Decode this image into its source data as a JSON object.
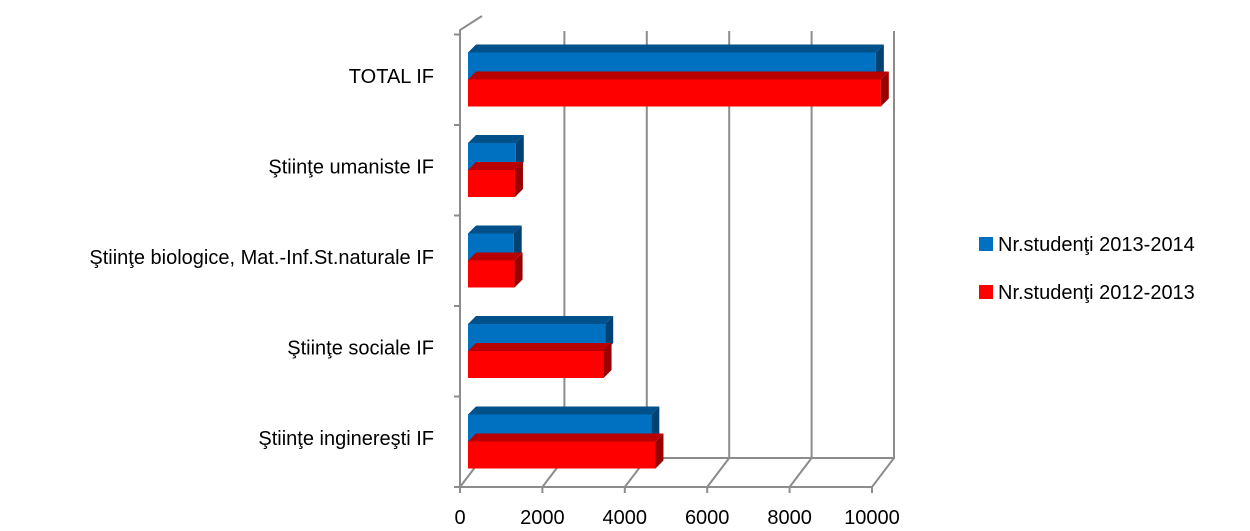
{
  "colors": {
    "series_2013_2014": "#0070c0",
    "series_2012_2013": "#ff0000",
    "grid": "#8c8c8c"
  },
  "chart_data": {
    "type": "bar",
    "orientation": "horizontal",
    "style": "3d-clustered",
    "categories": [
      "Ştiinţe inginereşti IF",
      "Ştiinţe sociale IF",
      "Ştiinţe biologice, Mat.-Inf.St.naturale IF",
      "Ştiinţe umaniste IF",
      "TOTAL IF"
    ],
    "series": [
      {
        "name": "Nr.studenţi 2013-2014",
        "color": "#0070c0",
        "values": [
          4450,
          3330,
          1110,
          1160,
          9900
        ]
      },
      {
        "name": "Nr.studenţi 2012-2013",
        "color": "#ff0000",
        "values": [
          4550,
          3290,
          1130,
          1140,
          10020
        ]
      }
    ],
    "xlim": [
      0,
      10000
    ],
    "xticks": [
      "0",
      "2000",
      "4000",
      "6000",
      "8000",
      "10000"
    ],
    "grid": true,
    "legend_position": "right",
    "title": "",
    "xlabel": "",
    "ylabel": ""
  }
}
